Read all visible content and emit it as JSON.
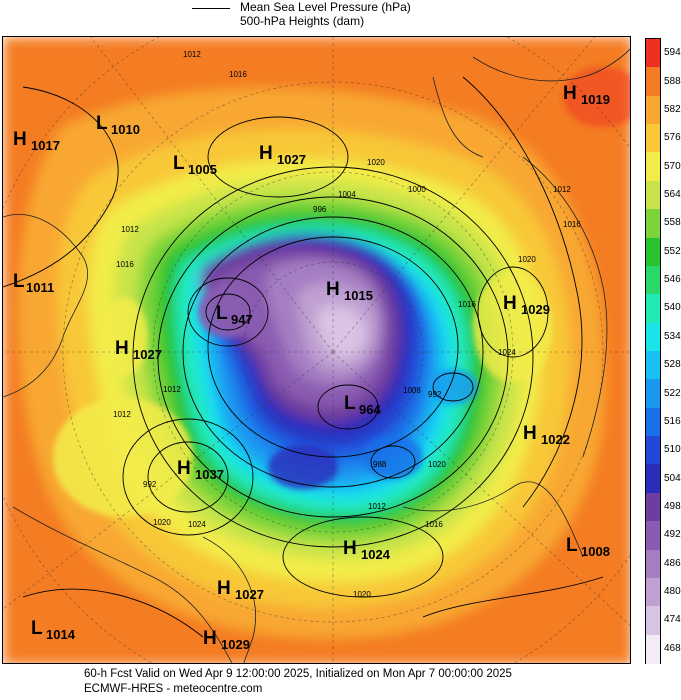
{
  "legend": {
    "line1": "Mean Sea Level Pressure (hPa)",
    "line2": "500-hPa Heights (dam)"
  },
  "map": {
    "pressure_centers": [
      {
        "type": "H",
        "value": "1017"
      },
      {
        "type": "L",
        "value": "1010"
      },
      {
        "type": "L",
        "value": "1005"
      },
      {
        "type": "H",
        "value": "1027"
      },
      {
        "type": "H",
        "value": "1019"
      },
      {
        "type": "L",
        "value": "1011"
      },
      {
        "type": "L",
        "value": "947"
      },
      {
        "type": "H",
        "value": "1015"
      },
      {
        "type": "H",
        "value": "1029"
      },
      {
        "type": "H",
        "value": "1027"
      },
      {
        "type": "L",
        "value": "964"
      },
      {
        "type": "H",
        "value": "1022"
      },
      {
        "type": "H",
        "value": "1037"
      },
      {
        "type": "H",
        "value": "1024"
      },
      {
        "type": "L",
        "value": "1008"
      },
      {
        "type": "H",
        "value": "1027"
      },
      {
        "type": "L",
        "value": "1014"
      },
      {
        "type": "H",
        "value": "1029"
      }
    ],
    "isobar_labels": [
      "1012",
      "1016",
      "1020",
      "1004",
      "1000",
      "996",
      "992",
      "988",
      "1008",
      "1024"
    ],
    "colors": {
      "c468": "#f3ecf6",
      "c474": "#d9c4e4",
      "c480": "#c0a0d2",
      "c486": "#a57ec2",
      "c492": "#8a5cb1",
      "c498": "#6f3c9f",
      "c504": "#2a2cba",
      "c510": "#2248d8",
      "c516": "#1a70e8",
      "c522": "#1a98f0",
      "c528": "#18c0f4",
      "c534": "#1ae4e8",
      "c540": "#22e8b4",
      "c546": "#2ad86a",
      "c552": "#28c230",
      "c558": "#7cd43a",
      "c564": "#c8e44a",
      "c570": "#f2ec4a",
      "c576": "#f8c838",
      "c582": "#f8a830",
      "c588": "#f47c24",
      "c594": "#ee3020"
    }
  },
  "colorbar": {
    "labels": [
      "594",
      "588",
      "582",
      "576",
      "570",
      "564",
      "558",
      "552",
      "546",
      "540",
      "534",
      "528",
      "522",
      "516",
      "510",
      "504",
      "498",
      "492",
      "486",
      "480",
      "474",
      "468"
    ]
  },
  "footer": {
    "line1": "60-h Fcst Valid on Wed Apr  9 12:00:00 2025, Initialized on Mon Apr  7 00:00:00 2025",
    "line2": "ECMWF-HRES  - meteocentre.com"
  }
}
